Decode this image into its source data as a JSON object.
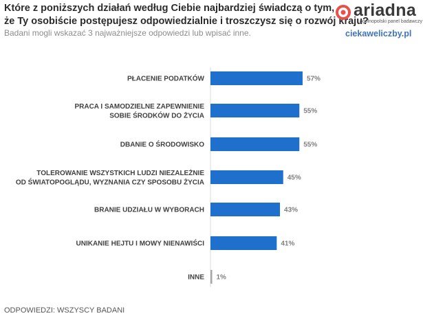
{
  "header": {
    "title_line1": "Które z poniższych działań według Ciebie najbardziej świadczą o tym,",
    "title_line2": "że Ty osobiście postępujesz odpowiedzialnie i troszczysz się o rozwój kraju?",
    "subtitle": "Badani mogli wskazać 3 najważniejsze odpowiedzi lub wpisać inne."
  },
  "brand": {
    "logo_name": "ariadna",
    "logo_tagline": "ogólnopolski panel badawczy",
    "logo_color": "#e8504a",
    "site": "ciekaweliczby.pl",
    "site_color": "#3f74b8"
  },
  "footer": {
    "text": "ODPOWIEDZI: WSZYSCY BADANI"
  },
  "chart_data": {
    "type": "bar",
    "orientation": "horizontal",
    "categories": [
      [
        "PŁACENIE PODATKÓW"
      ],
      [
        "PRACA I SAMODZIELNE ZAPEWNIENIE",
        "SOBIE ŚRODKÓW DO ŻYCIA"
      ],
      [
        "DBANIE O ŚRODOWISKO"
      ],
      [
        "TOLEROWANIE WSZYSTKICH LUDZI NIEZALEŻNIE",
        "OD ŚWIATOPOGLĄDU, WYZNANIA CZY SPOSOBU ŻYCIA"
      ],
      [
        "BRANIE UDZIAŁU W WYBORACH"
      ],
      [
        "UNIKANIE HEJTU I MOWY NIENAWIŚCI"
      ],
      [
        "INNE"
      ]
    ],
    "values": [
      57,
      55,
      55,
      45,
      43,
      41,
      1
    ],
    "value_labels": [
      "57%",
      "55%",
      "55%",
      "45%",
      "43%",
      "41%",
      "1%"
    ],
    "unit": "%",
    "xlim": [
      0,
      100
    ],
    "grid": false,
    "bar_color": "#1f6fcc",
    "other_bar_color": "#a6a6a6"
  }
}
